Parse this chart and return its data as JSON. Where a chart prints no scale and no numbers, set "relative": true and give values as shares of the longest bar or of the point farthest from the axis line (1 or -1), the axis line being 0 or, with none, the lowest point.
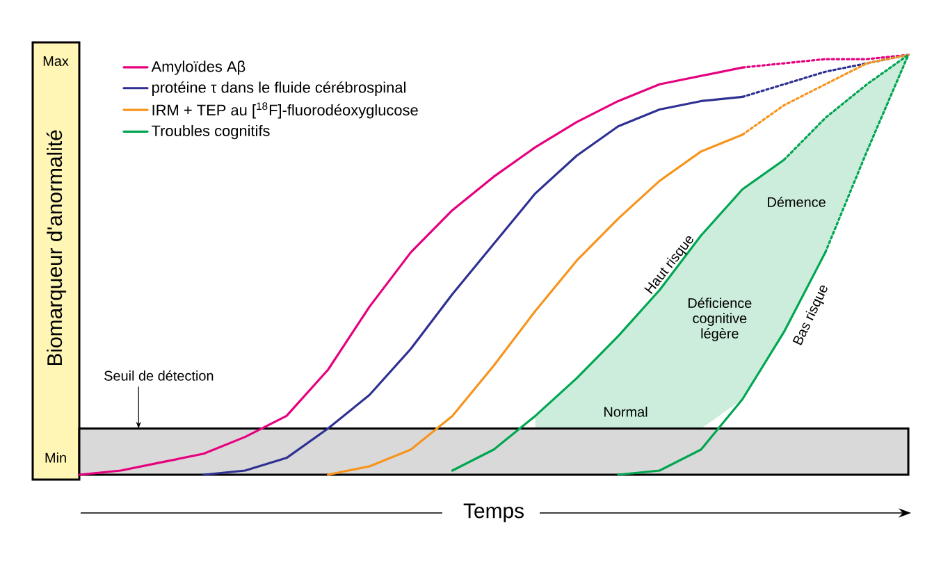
{
  "chart_data": {
    "type": "line",
    "xlabel": "Temps",
    "ylabel": "Biomarqueur d'anormalité",
    "categories": [
      null,
      null,
      null,
      null,
      null,
      null,
      null,
      null,
      null,
      null,
      null,
      null,
      null,
      null,
      null,
      null,
      null,
      null,
      null,
      null,
      null
    ],
    "relative": true,
    "legend": "top left",
    "marker": "none",
    "series": [
      {
        "name": "Amyloïdes Aβ",
        "color": "#e6007e",
        "line_style": "solid",
        "values": [
          0,
          0.01,
          0.03,
          0.05,
          0.09,
          0.14,
          0.25,
          0.4,
          0.53,
          0.63,
          0.71,
          0.78,
          0.84,
          0.89,
          0.93,
          0.95,
          0.97,
          null,
          null,
          null,
          null
        ]
      },
      {
        "name": "protéine τ dans le fluide cérébrospinal",
        "color": "#2e3192",
        "line_style": "solid",
        "values": [
          null,
          null,
          null,
          0,
          0.01,
          0.04,
          0.11,
          0.19,
          0.3,
          0.43,
          0.55,
          0.67,
          0.76,
          0.83,
          0.87,
          0.89,
          0.9,
          null,
          null,
          null,
          null
        ]
      },
      {
        "name": "IRM + TEP au [$^{18}$F]-fluorodéoxyglucose",
        "color": "#f7941d",
        "line_style": "solid",
        "values": [
          null,
          null,
          null,
          null,
          null,
          null,
          0,
          0.02,
          0.06,
          0.14,
          0.26,
          0.39,
          0.51,
          0.61,
          0.7,
          0.77,
          0.81,
          null,
          null,
          null,
          null
        ]
      },
      {
        "name": "Troubles cognitifs",
        "color": "#00a651",
        "line_style": "solid",
        "values": [
          null,
          null,
          null,
          null,
          null,
          null,
          null,
          null,
          null,
          0.01,
          0.06,
          0.14,
          0.23,
          0.33,
          0.44,
          0.57,
          0.68,
          0.75,
          null,
          null,
          null
        ],
        "upper": [
          null,
          null,
          null,
          null,
          null,
          null,
          null,
          null,
          null,
          null,
          null,
          0.14,
          0.23,
          0.33,
          0.44,
          0.57,
          0.68,
          0.75,
          0.85,
          0.93,
          1
        ],
        "lower": [
          null,
          null,
          null,
          null,
          null,
          null,
          null,
          null,
          null,
          null,
          null,
          0.11,
          0.11,
          0.11,
          0.11,
          0.11,
          0.18,
          0.34,
          0.53,
          0.77,
          1
        ]
      },
      {
        "color": "#00a651",
        "line_style": "solid",
        "values": [
          null,
          null,
          null,
          null,
          null,
          null,
          null,
          null,
          null,
          null,
          null,
          null,
          null,
          0,
          0.01,
          0.06,
          0.18,
          0.34,
          0.53,
          null,
          null
        ]
      },
      {
        "color": "#e6007e",
        "line_style": "dotted",
        "values": [
          null,
          null,
          null,
          null,
          null,
          null,
          null,
          null,
          null,
          null,
          null,
          null,
          null,
          null,
          null,
          null,
          0.97,
          0.98,
          0.99,
          0.99,
          1
        ]
      },
      {
        "color": "#2e3192",
        "line_style": "dotted",
        "values": [
          null,
          null,
          null,
          null,
          null,
          null,
          null,
          null,
          null,
          null,
          null,
          null,
          null,
          null,
          null,
          null,
          0.9,
          0.93,
          0.96,
          0.98,
          1
        ]
      },
      {
        "color": "#f7941d",
        "line_style": "dotted",
        "values": [
          null,
          null,
          null,
          null,
          null,
          null,
          null,
          null,
          null,
          null,
          null,
          null,
          null,
          null,
          null,
          null,
          0.81,
          0.88,
          0.93,
          0.98,
          1
        ]
      },
      {
        "color": "#00a651",
        "line_style": "dotted",
        "values": [
          null,
          null,
          null,
          null,
          null,
          null,
          null,
          null,
          null,
          null,
          null,
          null,
          null,
          null,
          null,
          null,
          null,
          0.75,
          0.85,
          0.93,
          1
        ]
      },
      {
        "color": "#00a651",
        "line_style": "dotted",
        "values": [
          null,
          null,
          null,
          null,
          null,
          null,
          null,
          null,
          null,
          null,
          null,
          null,
          null,
          null,
          null,
          null,
          null,
          null,
          0.53,
          0.77,
          1
        ]
      }
    ],
    "bands": [
      {
        "axis": "y",
        "from": 0,
        "to": 0.11,
        "label": "Seuil de détection",
        "color": "#d9d9d9"
      }
    ],
    "annotations": [
      "Haut risque",
      "Démence",
      "Déficience cognitive légère",
      "Bas risque",
      "Normal",
      "Max",
      "Min"
    ]
  }
}
